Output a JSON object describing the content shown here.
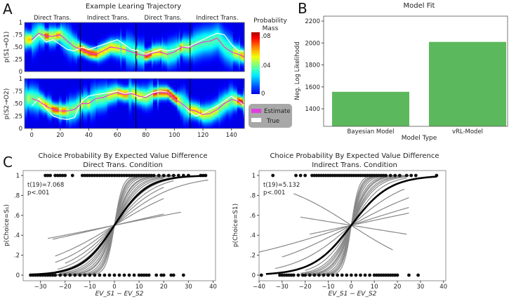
{
  "panel_letters": {
    "a": "A",
    "b": "B",
    "c": "C"
  },
  "chart_data": [
    {
      "type": "heatmap",
      "id": "A",
      "title": "Example Learing Trajectory",
      "segments": [
        "Direct Trans.",
        "Indirect Trans.",
        "Direct Trans.",
        "Indirect Trans."
      ],
      "segment_boundaries": [
        34,
        73,
        111
      ],
      "xlim": [
        -5,
        149
      ],
      "xticks": [
        0,
        20,
        40,
        60,
        80,
        100,
        120,
        140
      ],
      "yticks": [
        0,
        0.25,
        0.5,
        0.75,
        1
      ],
      "ytick_labels": [
        "0",
        ".25",
        ".50",
        ".75",
        "1"
      ],
      "colorbar": {
        "label_line1": "Probability",
        "label_line2": "Mass",
        "ticks": [
          "0",
          ".04",
          ".08"
        ],
        "range": [
          0,
          0.09
        ]
      },
      "legend": {
        "estimate": "Estimate",
        "true": "True",
        "estimate_color": "#e040e0",
        "true_color": "#ffffff"
      },
      "panels": [
        {
          "ylabel": "p(S1→O1)",
          "trial": [
            0,
            5,
            10,
            15,
            20,
            25,
            30,
            35,
            40,
            45,
            50,
            55,
            60,
            65,
            70,
            75,
            80,
            85,
            90,
            95,
            100,
            105,
            110,
            115,
            120,
            125,
            130,
            135,
            140,
            145,
            149
          ],
          "estimate": [
            0.65,
            0.78,
            0.72,
            0.72,
            0.75,
            0.62,
            0.5,
            0.45,
            0.38,
            0.35,
            0.42,
            0.5,
            0.48,
            0.45,
            0.4,
            0.35,
            0.32,
            0.38,
            0.4,
            0.35,
            0.4,
            0.5,
            0.48,
            0.55,
            0.6,
            0.62,
            0.68,
            0.5,
            0.4,
            0.35,
            0.3
          ],
          "true": [
            0.6,
            0.75,
            0.6,
            0.65,
            0.55,
            0.45,
            0.42,
            0.5,
            0.45,
            0.5,
            0.55,
            0.6,
            0.65,
            0.55,
            0.45,
            0.42,
            0.35,
            0.4,
            0.45,
            0.42,
            0.45,
            0.5,
            0.5,
            0.58,
            0.65,
            0.72,
            0.78,
            0.75,
            0.55,
            0.42,
            0.42
          ]
        },
        {
          "ylabel": "p(S2→O2)",
          "trial": [
            0,
            5,
            10,
            15,
            20,
            25,
            30,
            35,
            40,
            45,
            50,
            55,
            60,
            65,
            70,
            75,
            80,
            85,
            90,
            95,
            100,
            105,
            110,
            115,
            120,
            125,
            130,
            135,
            140,
            145,
            149
          ],
          "estimate": [
            0.6,
            0.55,
            0.45,
            0.38,
            0.35,
            0.35,
            0.38,
            0.5,
            0.5,
            0.6,
            0.62,
            0.68,
            0.72,
            0.68,
            0.7,
            0.65,
            0.62,
            0.7,
            0.72,
            0.72,
            0.6,
            0.5,
            0.38,
            0.35,
            0.28,
            0.3,
            0.38,
            0.5,
            0.58,
            0.55,
            0.5
          ],
          "true": [
            0.45,
            0.6,
            0.4,
            0.25,
            0.2,
            0.18,
            0.22,
            0.55,
            0.65,
            0.68,
            0.7,
            0.72,
            0.75,
            0.7,
            0.72,
            0.6,
            0.65,
            0.72,
            0.75,
            0.73,
            0.6,
            0.5,
            0.35,
            0.25,
            0.3,
            0.38,
            0.45,
            0.55,
            0.65,
            0.55,
            0.45
          ]
        }
      ]
    },
    {
      "type": "bar",
      "id": "B",
      "title": "Model Fit",
      "categories": [
        "Bayesian Model",
        "vRL-Model"
      ],
      "values": [
        1555,
        2010
      ],
      "xlabel": "Model Type",
      "ylabel": "Neg. Log Likelihodd",
      "ylim": [
        1240,
        2245
      ],
      "yticks": [
        1400,
        1600,
        1800,
        2000,
        2200
      ],
      "color": "#5cb85c"
    },
    {
      "type": "line",
      "id": "C-left",
      "title": "Choice Probability By Expected Value Difference",
      "subtitle": "Direct Trans. Condition",
      "stat": "t(19)=7.068",
      "p": "p<.001",
      "xlabel": "EV_S1 − EV_S2",
      "ylabel": "p(Choice=S₁)",
      "xlim": [
        -37,
        41
      ],
      "xticks": [
        -30,
        -20,
        -10,
        0,
        10,
        20,
        30,
        40
      ],
      "yticks": [
        "0",
        ".2",
        ".4",
        ".6",
        ".8",
        "1"
      ],
      "group_slope": 0.15,
      "subject_fits": [
        [
          0.6,
          -25,
          25
        ],
        [
          0.5,
          -25,
          25
        ],
        [
          0.45,
          -24,
          24
        ],
        [
          0.4,
          -24,
          25
        ],
        [
          0.35,
          -24,
          25
        ],
        [
          0.3,
          -24,
          24
        ],
        [
          0.28,
          -23,
          22
        ],
        [
          0.25,
          -24,
          25
        ],
        [
          0.22,
          -23,
          24
        ],
        [
          0.2,
          -22,
          24
        ],
        [
          0.18,
          -22,
          20
        ],
        [
          0.16,
          -25,
          22
        ],
        [
          0.14,
          -24,
          25
        ],
        [
          0.12,
          -23,
          24
        ],
        [
          0.1,
          -20,
          20
        ],
        [
          0.08,
          -24,
          38
        ],
        [
          0.06,
          -24,
          20
        ],
        [
          0.023,
          -25,
          20
        ],
        [
          0.02,
          -27,
          27
        ]
      ],
      "choice1_x": [
        -28,
        -27,
        -26,
        -24,
        -23,
        -22,
        -21,
        -20,
        -17,
        -13,
        -12,
        -11,
        -10,
        -9,
        -8,
        -7,
        -6,
        -5,
        -4,
        -3,
        -2,
        -1,
        0,
        1,
        2,
        3,
        4,
        5,
        6,
        7,
        8,
        9,
        10,
        11,
        12,
        13,
        14,
        15,
        16,
        18,
        20,
        22,
        24,
        26,
        28,
        30,
        35,
        36,
        37
      ],
      "choice0_x": [
        -34,
        -33,
        -32,
        -31,
        -30,
        -29,
        -28,
        -27,
        -26,
        -25,
        -24,
        -22,
        -20,
        -18,
        -16,
        -14,
        -12,
        -10,
        -8,
        -6,
        -4,
        -2,
        0,
        2,
        4,
        6,
        8,
        10,
        11,
        12,
        13,
        14,
        17,
        19,
        20,
        23,
        24,
        28
      ]
    },
    {
      "type": "line",
      "id": "C-right",
      "title": "Choice Probability By Expected Value Difference",
      "subtitle": "Indirect Trans. Condition",
      "stat": "t(19)=5.132",
      "p": "p<.001",
      "xlabel": "EV_S1 − EV_S2",
      "ylabel": "p(Choice=S1)",
      "xlim": [
        -40,
        41
      ],
      "xticks": [
        -40,
        -30,
        -20,
        -10,
        0,
        10,
        20,
        30,
        40
      ],
      "yticks": [
        "0",
        ".2",
        ".4",
        ".6",
        ".8",
        "1"
      ],
      "group_slope": 0.12,
      "subject_fits": [
        [
          0.6,
          -20,
          20
        ],
        [
          0.5,
          -22,
          22
        ],
        [
          0.45,
          -20,
          25
        ],
        [
          0.4,
          -22,
          22
        ],
        [
          0.35,
          -22,
          25
        ],
        [
          0.3,
          -20,
          25
        ],
        [
          0.27,
          -22,
          22
        ],
        [
          0.25,
          -22,
          24
        ],
        [
          0.22,
          -22,
          26
        ],
        [
          0.2,
          -20,
          24
        ],
        [
          0.18,
          -22,
          24
        ],
        [
          0.15,
          -20,
          24
        ],
        [
          0.12,
          -20,
          24
        ],
        [
          0.08,
          -33,
          23
        ],
        [
          0.05,
          -30,
          25
        ],
        [
          0.03,
          -40,
          25
        ],
        [
          0.02,
          -18,
          25
        ],
        [
          -0.015,
          -22,
          24
        ],
        [
          -0.06,
          -25,
          18
        ]
      ],
      "choice1_x": [
        -34,
        -24,
        -22,
        -20,
        -17,
        -16,
        -15,
        -14,
        -13,
        -12,
        -11,
        -10,
        -9,
        -8,
        -7,
        -6,
        -5,
        -4,
        -3,
        -2,
        -1,
        0,
        1,
        2,
        3,
        4,
        5,
        6,
        7,
        8,
        9,
        10,
        11,
        12,
        13,
        14,
        15,
        17,
        19,
        21,
        24,
        26,
        28,
        37
      ],
      "choice0_x": [
        -39,
        -31,
        -30,
        -29,
        -28,
        -27,
        -26,
        -25,
        -23,
        -21,
        -20,
        -18,
        -16,
        -14,
        -12,
        -10,
        -8,
        -6,
        -4,
        -2,
        0,
        2,
        4,
        6,
        8,
        10,
        11,
        12,
        13,
        14,
        15,
        16,
        17,
        18,
        19,
        20,
        25,
        29
      ]
    }
  ]
}
